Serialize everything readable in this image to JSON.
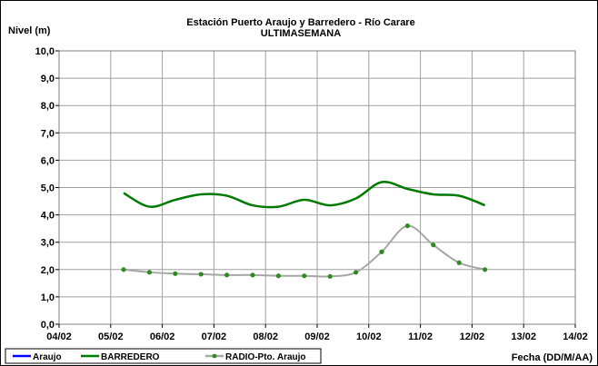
{
  "chart_data": {
    "type": "line",
    "title": "Estación Puerto Araujo y Barredero - Río Carare",
    "subtitle": "ULTIMASEMANA",
    "ylabel": "Nivel (m)",
    "xlabel": "Fecha (DD/M/AA)",
    "ylim": [
      0,
      10
    ],
    "yticks": [
      "0,0",
      "1,0",
      "2,0",
      "3,0",
      "4,0",
      "5,0",
      "6,0",
      "7,0",
      "8,0",
      "9,0",
      "10,0"
    ],
    "xlim": [
      0,
      10
    ],
    "xticks": [
      "04/02",
      "05/02",
      "06/02",
      "07/02",
      "08/02",
      "09/02",
      "10/02",
      "11/02",
      "12/02",
      "13/02",
      "14/02"
    ],
    "grid": true,
    "legend_position": "bottom",
    "series": [
      {
        "name": "Araujo",
        "color": "#0000ff",
        "marker": false,
        "x": [],
        "y": []
      },
      {
        "name": "BARREDERO",
        "color": "#007a00",
        "marker": false,
        "x": [
          1.25,
          1.75,
          2.25,
          2.75,
          3.25,
          3.75,
          4.25,
          4.75,
          5.25,
          5.75,
          6.25,
          6.75,
          7.25,
          7.75,
          8.25
        ],
        "y": [
          4.8,
          4.3,
          4.55,
          4.75,
          4.7,
          4.35,
          4.3,
          4.55,
          4.35,
          4.6,
          5.2,
          4.95,
          4.75,
          4.7,
          4.35
        ]
      },
      {
        "name": "RADIO-Pto. Araujo",
        "color": "#a6a6a6",
        "marker_color": "#2e8b22",
        "marker": true,
        "x": [
          1.25,
          1.75,
          2.25,
          2.75,
          3.25,
          3.75,
          4.25,
          4.75,
          5.25,
          5.75,
          6.25,
          6.75,
          7.25,
          7.75,
          8.25
        ],
        "y": [
          2.0,
          1.9,
          1.85,
          1.83,
          1.8,
          1.8,
          1.77,
          1.77,
          1.75,
          1.9,
          2.65,
          3.6,
          2.9,
          2.25,
          2.0
        ]
      }
    ]
  }
}
